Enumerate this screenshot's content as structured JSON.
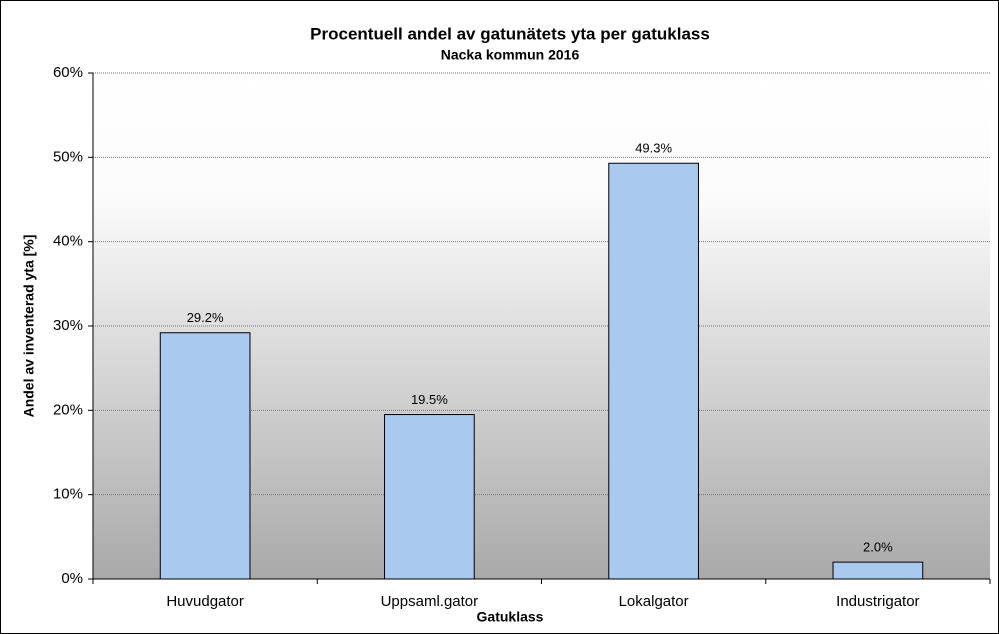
{
  "chart_data": {
    "type": "bar",
    "title": "Procentuell andel av gatunätets yta per gatuklass",
    "subtitle": "Nacka kommun 2016",
    "x_label": "Gatuklass",
    "y_label": "Andel av inventerad yta [%]",
    "categories": [
      "Huvudgator",
      "Uppsaml.gator",
      "Lokalgator",
      "Industrigator"
    ],
    "values": [
      29.2,
      19.5,
      49.3,
      2.0
    ],
    "value_labels": [
      "29.2%",
      "19.5%",
      "49.3%",
      "2.0%"
    ],
    "color": "#a9c9ef",
    "ylim": [
      0,
      60
    ],
    "yticks": [
      {
        "value": 0,
        "label": "0%"
      },
      {
        "value": 10,
        "label": "10%"
      },
      {
        "value": 20,
        "label": "20%"
      },
      {
        "value": 30,
        "label": "30%"
      },
      {
        "value": 40,
        "label": "40%"
      },
      {
        "value": 50,
        "label": "50%"
      },
      {
        "value": 60,
        "label": "60%"
      }
    ],
    "grid": true
  }
}
